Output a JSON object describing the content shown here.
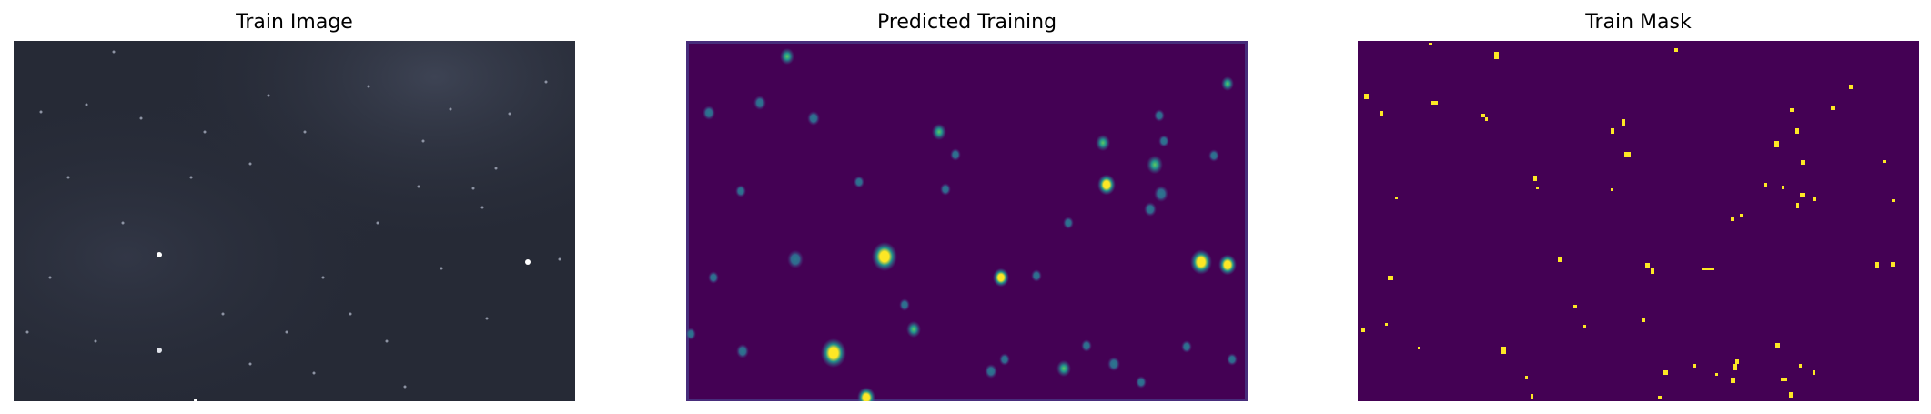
{
  "figure": {
    "panels": [
      {
        "title": "Train Image"
      },
      {
        "title": "Predicted Training"
      },
      {
        "title": "Train Mask"
      }
    ],
    "colors": {
      "train_image_bg": "#262a36",
      "prediction_bg": "#440154",
      "prediction_mid": "#21918c",
      "prediction_high": "#fde725",
      "mask_bg": "#440154",
      "mask_fg": "#fde725"
    }
  }
}
